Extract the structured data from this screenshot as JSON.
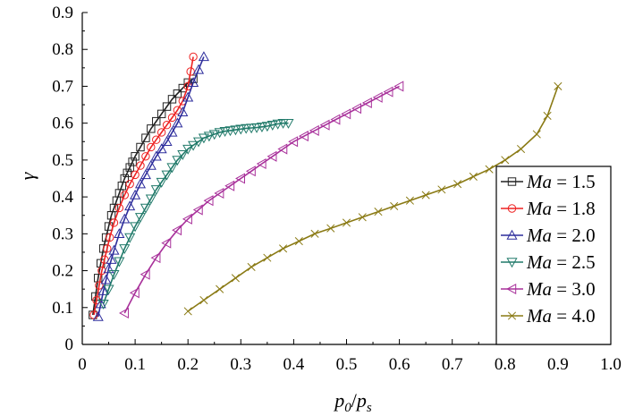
{
  "chart_data": {
    "type": "line",
    "xlabel_base": "p",
    "xlabel_sub1": "0",
    "xlabel_sep": "/",
    "xlabel_sub2": "s",
    "ylabel": "γ",
    "xlim": [
      0,
      1.0
    ],
    "ylim": [
      0,
      0.9
    ],
    "xticks": [
      "0",
      "0.1",
      "0.2",
      "0.3",
      "0.4",
      "0.5",
      "0.6",
      "0.7",
      "0.8",
      "0.9",
      "1.0"
    ],
    "yticks": [
      "0",
      "0.1",
      "0.2",
      "0.3",
      "0.4",
      "0.5",
      "0.6",
      "0.7",
      "0.8",
      "0.9"
    ],
    "legend_position": "right",
    "series": [
      {
        "legend_var": "Ma",
        "legend_eq": " = 1.5",
        "color": "#222222",
        "marker": "square",
        "points": [
          [
            0.02,
            0.08
          ],
          [
            0.025,
            0.13
          ],
          [
            0.03,
            0.18
          ],
          [
            0.035,
            0.22
          ],
          [
            0.04,
            0.26
          ],
          [
            0.045,
            0.29
          ],
          [
            0.05,
            0.32
          ],
          [
            0.055,
            0.35
          ],
          [
            0.06,
            0.37
          ],
          [
            0.065,
            0.39
          ],
          [
            0.07,
            0.41
          ],
          [
            0.075,
            0.43
          ],
          [
            0.08,
            0.45
          ],
          [
            0.085,
            0.465
          ],
          [
            0.09,
            0.48
          ],
          [
            0.095,
            0.495
          ],
          [
            0.1,
            0.51
          ],
          [
            0.11,
            0.535
          ],
          [
            0.12,
            0.56
          ],
          [
            0.13,
            0.585
          ],
          [
            0.14,
            0.605
          ],
          [
            0.15,
            0.625
          ],
          [
            0.16,
            0.645
          ],
          [
            0.17,
            0.665
          ],
          [
            0.18,
            0.68
          ],
          [
            0.19,
            0.695
          ],
          [
            0.2,
            0.71
          ],
          [
            0.21,
            0.72
          ]
        ]
      },
      {
        "legend_var": "Ma",
        "legend_eq": " = 1.8",
        "color": "#ee2222",
        "marker": "circle",
        "points": [
          [
            0.022,
            0.08
          ],
          [
            0.027,
            0.12
          ],
          [
            0.032,
            0.16
          ],
          [
            0.037,
            0.2
          ],
          [
            0.042,
            0.23
          ],
          [
            0.047,
            0.26
          ],
          [
            0.052,
            0.29
          ],
          [
            0.06,
            0.33
          ],
          [
            0.07,
            0.37
          ],
          [
            0.08,
            0.405
          ],
          [
            0.09,
            0.435
          ],
          [
            0.1,
            0.46
          ],
          [
            0.11,
            0.485
          ],
          [
            0.12,
            0.51
          ],
          [
            0.13,
            0.535
          ],
          [
            0.14,
            0.555
          ],
          [
            0.15,
            0.575
          ],
          [
            0.16,
            0.595
          ],
          [
            0.17,
            0.615
          ],
          [
            0.18,
            0.635
          ],
          [
            0.19,
            0.66
          ],
          [
            0.2,
            0.7
          ],
          [
            0.205,
            0.74
          ],
          [
            0.21,
            0.78
          ]
        ]
      },
      {
        "legend_var": "Ma",
        "legend_eq": " = 2.0",
        "color": "#2d2d9c",
        "marker": "triangle-up",
        "points": [
          [
            0.03,
            0.075
          ],
          [
            0.035,
            0.11
          ],
          [
            0.04,
            0.145
          ],
          [
            0.045,
            0.175
          ],
          [
            0.05,
            0.205
          ],
          [
            0.055,
            0.23
          ],
          [
            0.06,
            0.255
          ],
          [
            0.07,
            0.3
          ],
          [
            0.08,
            0.34
          ],
          [
            0.09,
            0.375
          ],
          [
            0.1,
            0.405
          ],
          [
            0.11,
            0.435
          ],
          [
            0.12,
            0.46
          ],
          [
            0.13,
            0.485
          ],
          [
            0.14,
            0.51
          ],
          [
            0.15,
            0.53
          ],
          [
            0.16,
            0.55
          ],
          [
            0.17,
            0.575
          ],
          [
            0.18,
            0.6
          ],
          [
            0.19,
            0.63
          ],
          [
            0.2,
            0.67
          ],
          [
            0.21,
            0.71
          ],
          [
            0.22,
            0.745
          ],
          [
            0.23,
            0.78
          ]
        ]
      },
      {
        "legend_var": "Ma",
        "legend_eq": " = 2.5",
        "color": "#217a6a",
        "marker": "triangle-down",
        "points": [
          [
            0.04,
            0.11
          ],
          [
            0.05,
            0.15
          ],
          [
            0.06,
            0.19
          ],
          [
            0.07,
            0.225
          ],
          [
            0.08,
            0.26
          ],
          [
            0.09,
            0.29
          ],
          [
            0.1,
            0.32
          ],
          [
            0.11,
            0.345
          ],
          [
            0.12,
            0.37
          ],
          [
            0.13,
            0.395
          ],
          [
            0.14,
            0.42
          ],
          [
            0.15,
            0.44
          ],
          [
            0.16,
            0.46
          ],
          [
            0.17,
            0.48
          ],
          [
            0.18,
            0.5
          ],
          [
            0.19,
            0.515
          ],
          [
            0.2,
            0.53
          ],
          [
            0.21,
            0.54
          ],
          [
            0.22,
            0.55
          ],
          [
            0.23,
            0.56
          ],
          [
            0.24,
            0.565
          ],
          [
            0.25,
            0.57
          ],
          [
            0.26,
            0.575
          ],
          [
            0.27,
            0.578
          ],
          [
            0.28,
            0.58
          ],
          [
            0.29,
            0.582
          ],
          [
            0.3,
            0.584
          ],
          [
            0.31,
            0.586
          ],
          [
            0.32,
            0.587
          ],
          [
            0.33,
            0.588
          ],
          [
            0.34,
            0.59
          ],
          [
            0.35,
            0.592
          ],
          [
            0.36,
            0.595
          ],
          [
            0.37,
            0.598
          ],
          [
            0.38,
            0.6
          ],
          [
            0.39,
            0.6
          ]
        ]
      },
      {
        "legend_var": "Ma",
        "legend_eq": " = 3.0",
        "color": "#a8309a",
        "marker": "triangle-left",
        "points": [
          [
            0.08,
            0.085
          ],
          [
            0.1,
            0.14
          ],
          [
            0.12,
            0.19
          ],
          [
            0.14,
            0.235
          ],
          [
            0.16,
            0.275
          ],
          [
            0.18,
            0.31
          ],
          [
            0.2,
            0.34
          ],
          [
            0.22,
            0.365
          ],
          [
            0.24,
            0.39
          ],
          [
            0.26,
            0.41
          ],
          [
            0.28,
            0.43
          ],
          [
            0.3,
            0.45
          ],
          [
            0.32,
            0.47
          ],
          [
            0.34,
            0.49
          ],
          [
            0.36,
            0.51
          ],
          [
            0.38,
            0.53
          ],
          [
            0.4,
            0.55
          ],
          [
            0.42,
            0.565
          ],
          [
            0.44,
            0.58
          ],
          [
            0.46,
            0.595
          ],
          [
            0.48,
            0.61
          ],
          [
            0.5,
            0.625
          ],
          [
            0.52,
            0.64
          ],
          [
            0.54,
            0.655
          ],
          [
            0.56,
            0.67
          ],
          [
            0.58,
            0.685
          ],
          [
            0.6,
            0.7
          ]
        ]
      },
      {
        "legend_var": "Ma",
        "legend_eq": " = 4.0",
        "color": "#8a7a14",
        "marker": "cross",
        "points": [
          [
            0.2,
            0.09
          ],
          [
            0.23,
            0.12
          ],
          [
            0.26,
            0.15
          ],
          [
            0.29,
            0.18
          ],
          [
            0.32,
            0.21
          ],
          [
            0.35,
            0.235
          ],
          [
            0.38,
            0.26
          ],
          [
            0.41,
            0.28
          ],
          [
            0.44,
            0.3
          ],
          [
            0.47,
            0.315
          ],
          [
            0.5,
            0.33
          ],
          [
            0.53,
            0.345
          ],
          [
            0.56,
            0.36
          ],
          [
            0.59,
            0.375
          ],
          [
            0.62,
            0.39
          ],
          [
            0.65,
            0.405
          ],
          [
            0.68,
            0.42
          ],
          [
            0.71,
            0.435
          ],
          [
            0.74,
            0.455
          ],
          [
            0.77,
            0.475
          ],
          [
            0.8,
            0.5
          ],
          [
            0.83,
            0.53
          ],
          [
            0.86,
            0.57
          ],
          [
            0.88,
            0.62
          ],
          [
            0.9,
            0.7
          ]
        ]
      }
    ]
  }
}
